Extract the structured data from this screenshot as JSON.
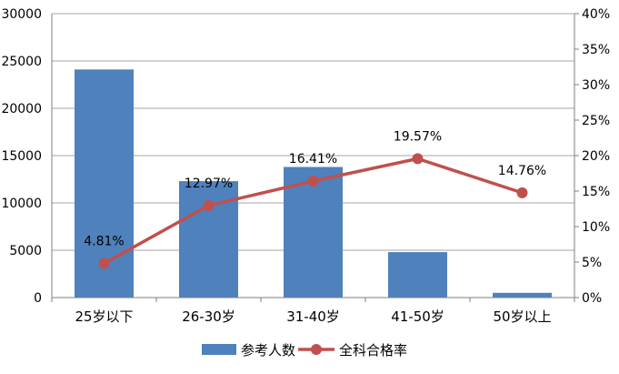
{
  "chart_data": {
    "type": "bar",
    "categories": [
      "25岁以下",
      "26-30岁",
      "31-40岁",
      "41-50岁",
      "50岁以上"
    ],
    "series": [
      {
        "name": "参考人数",
        "type": "bar",
        "axis": "left",
        "color": "#4F81BD",
        "values": [
          24100,
          12300,
          13800,
          4800,
          500
        ]
      },
      {
        "name": "全科合格率",
        "type": "line",
        "axis": "right",
        "color": "#C0504D",
        "values": [
          4.81,
          12.97,
          16.41,
          19.57,
          14.76
        ],
        "labels": [
          "4.81%",
          "12.97%",
          "16.41%",
          "19.57%",
          "14.76%"
        ]
      }
    ],
    "left_axis": {
      "ylim": [
        0,
        30000
      ],
      "ticks": [
        "0",
        "5000",
        "10000",
        "15000",
        "20000",
        "25000",
        "30000"
      ]
    },
    "right_axis": {
      "ylim": [
        0,
        40
      ],
      "unit": "%",
      "ticks": [
        "0%",
        "5%",
        "10%",
        "15%",
        "20%",
        "25%",
        "30%",
        "35%",
        "40%"
      ]
    },
    "grid": true,
    "legend": "bottom",
    "title": "",
    "xlabel": "",
    "ylabel": ""
  }
}
